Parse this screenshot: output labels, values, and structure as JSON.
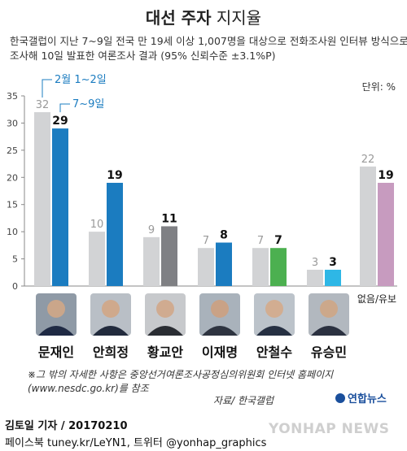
{
  "header": {
    "title_bold": "대선 주자",
    "title_light": " 지지율",
    "desc_line1": "한국갤럽이 지난 7~9일 전국 만 19세 이상 1,007명을 대상으로 전화조사원 인터뷰 방식으로",
    "desc_line2": "조사해 10일 발표한 여론조사 결과 (95% 신뢰수준 ±3.1%P)"
  },
  "unit": "단위: %",
  "legend": {
    "feb": "2월 1~2일",
    "jul": "7~9일"
  },
  "chart_data": {
    "type": "bar",
    "categories": [
      "문재인",
      "안희정",
      "황교안",
      "이재명",
      "안철수",
      "유승민",
      "없음/유보"
    ],
    "series": [
      {
        "name": "2월 1~2일",
        "values": [
          32,
          10,
          9,
          7,
          7,
          3,
          22
        ]
      },
      {
        "name": "7~9일",
        "values": [
          29,
          19,
          11,
          8,
          7,
          3,
          19
        ]
      }
    ],
    "yticks": [
      0,
      5,
      10,
      15,
      20,
      25,
      30,
      35
    ],
    "ylim": [
      0,
      35
    ],
    "colors": {
      "prev": "#d2d3d5",
      "current": [
        "#1b7cc0",
        "#1b7cc0",
        "#7f8084",
        "#1b7cc0",
        "#4cb050",
        "#2eb7e6",
        "#c79bbf"
      ],
      "label_light": "#9a9a9a",
      "axis": "#888888"
    }
  },
  "footnote": {
    "line1": "※그 밖의 자세한 사항은 중앙선거여론조사공정심의위원회 인터넷 홈페이지",
    "line2": "(www.nesdc.go.kr)를 참조"
  },
  "source": "자료/ 한국갤럽",
  "logo": "연합뉴스",
  "byline": {
    "reporter": "김토일 기자 / 20170210",
    "social": "페이스북 tuney.kr/LeYN1, 트위터 @yonhap_graphics"
  },
  "watermark": "YONHAP NEWS"
}
